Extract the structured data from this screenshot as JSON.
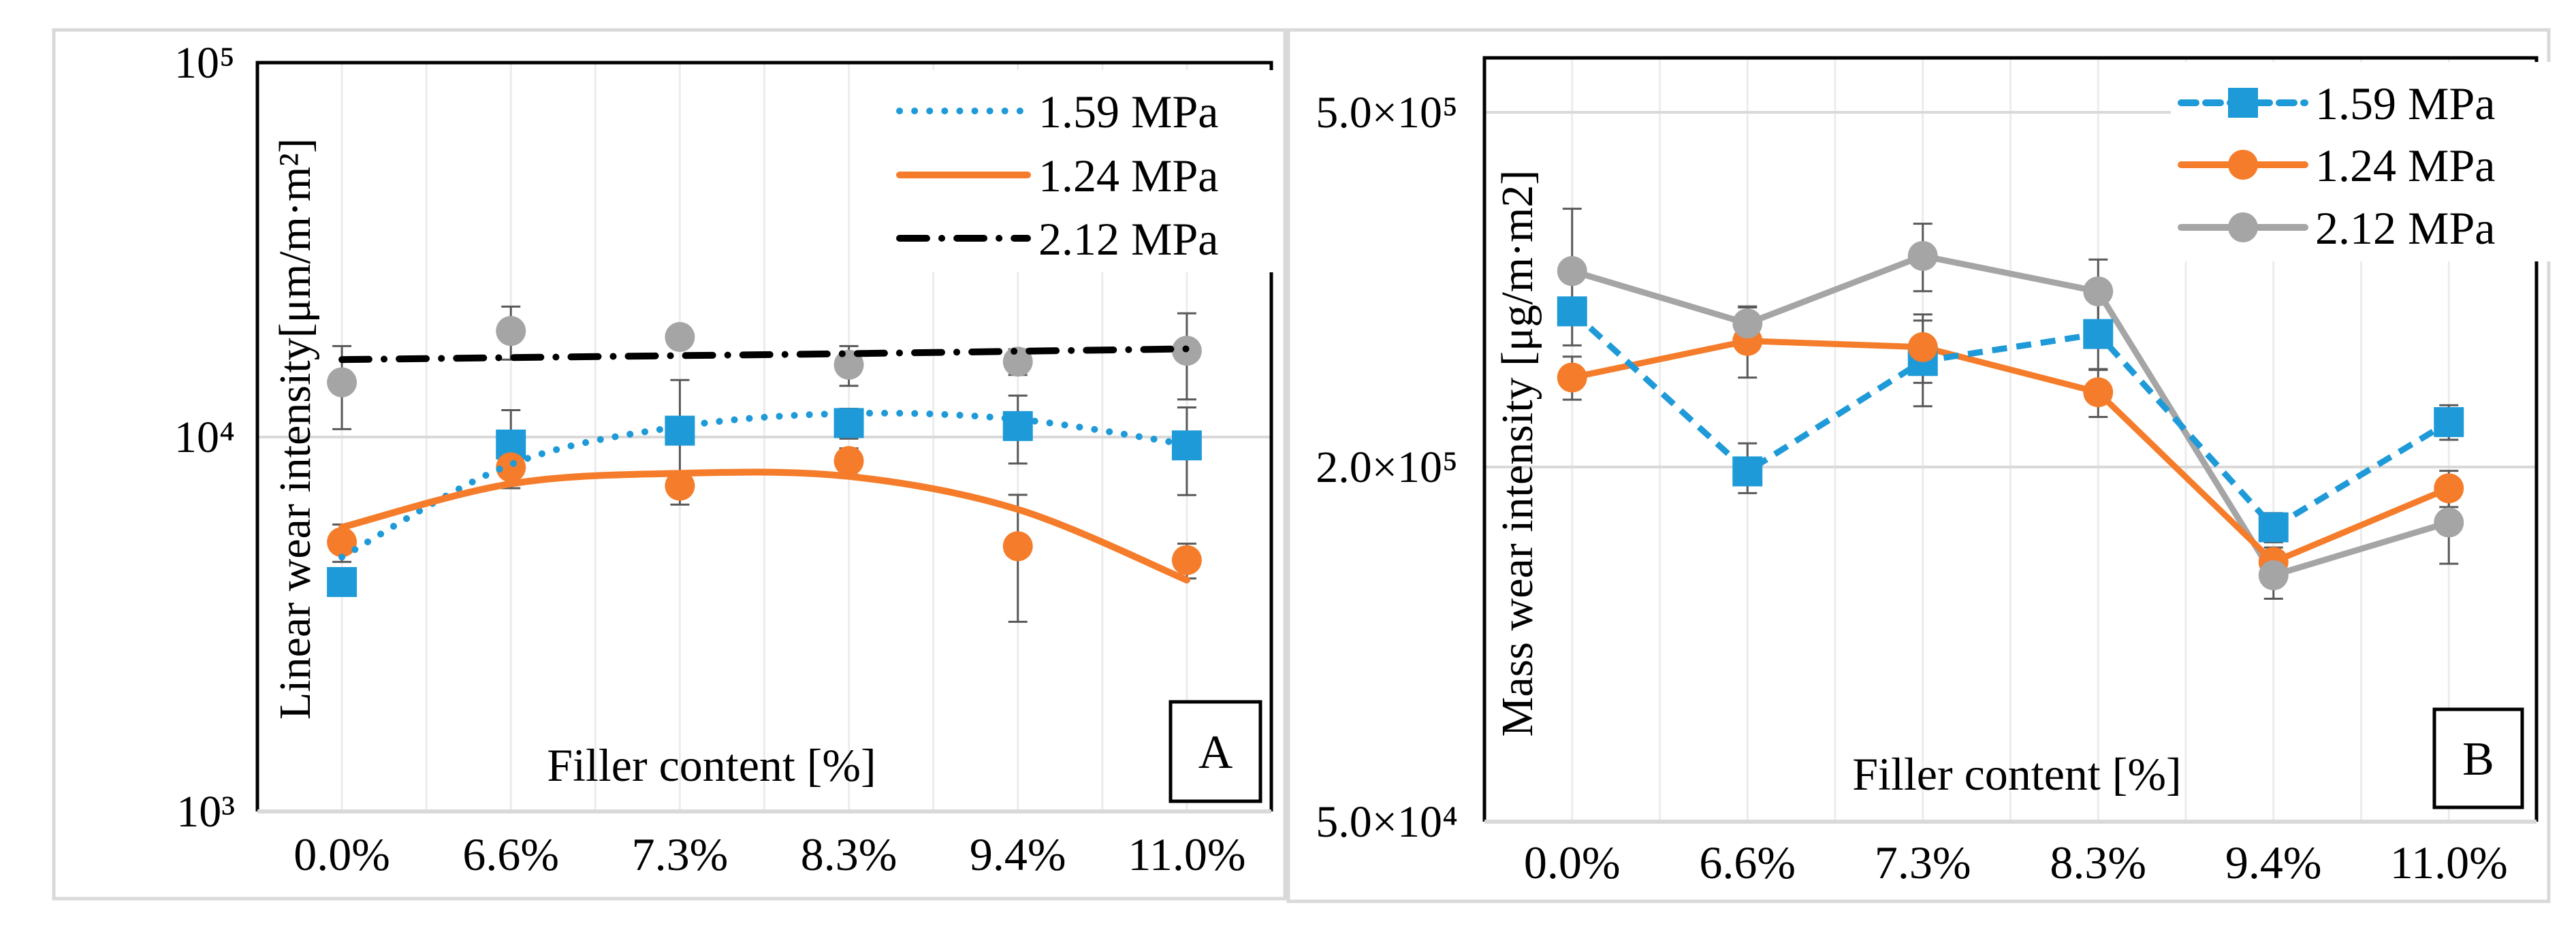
{
  "chart_data": [
    {
      "type": "scatter",
      "panel_label": "A",
      "xlabel": "Filler content [%]",
      "ylabel": "Linear wear intensity[μm/m·m²]",
      "yscale": "log",
      "ylim": [
        1000,
        100000
      ],
      "yticks": [
        {
          "value": 100000,
          "label": "10⁵"
        },
        {
          "value": 10000,
          "label": "10⁴"
        },
        {
          "value": 1000,
          "label": "10³"
        }
      ],
      "grid": true,
      "legend_position": "top-right",
      "categories": [
        "0.0%",
        "6.6%",
        "7.3%",
        "8.3%",
        "9.4%",
        "11.0%"
      ],
      "series": [
        {
          "name": "1.59 MPa",
          "color": "#1f9ad8",
          "marker": "square",
          "values": [
            4100,
            9550,
            10400,
            10900,
            10700,
            9500
          ],
          "errors": [
            300,
            2250,
            3800,
            1000,
            2200,
            2500
          ],
          "trendline": {
            "style": "dotted",
            "color": "#1f9ad8",
            "values": [
              4780,
              8450,
              10670,
              11560,
              11150,
              9550
            ]
          }
        },
        {
          "name": "1.24 MPa",
          "color": "#f57c2a",
          "marker": "circle",
          "values": [
            5240,
            8300,
            7410,
            8630,
            5110,
            4690
          ],
          "errors": [
            600,
            300,
            300,
            700,
            1900,
            500
          ],
          "trendline": {
            "style": "solid",
            "color": "#f57c2a",
            "values": [
              5740,
              7500,
              8000,
              7850,
              6410,
              4150
            ]
          }
        },
        {
          "name": "2.12 MPa",
          "color": "#a5a5a5",
          "marker": "circle",
          "values": [
            14000,
            19200,
            18500,
            15600,
            15900,
            17000
          ],
          "errors": [
            3500,
            3100,
            500,
            1900,
            1250,
            4400
          ],
          "trendline": {
            "style": "dash-dot",
            "color": "#000000",
            "values": [
              16100,
              16300,
              16500,
              16700,
              16950,
              17200
            ]
          }
        }
      ]
    },
    {
      "type": "line",
      "panel_label": "B",
      "xlabel": "Filler content [%]",
      "ylabel": "Mass wear intensity [μg/m·m2]",
      "yscale": "log",
      "ylim": [
        50000,
        500000
      ],
      "yticks": [
        {
          "value": 500000,
          "label": "5.0×10⁵"
        },
        {
          "value": 200000,
          "label": "2.0×10⁵"
        },
        {
          "value": 50000,
          "label": "5.0×10⁴"
        }
      ],
      "grid": true,
      "legend_position": "top-right",
      "categories": [
        "0.0%",
        "6.6%",
        "7.3%",
        "8.3%",
        "9.4%",
        "11.0%"
      ],
      "series": [
        {
          "name": "1.59 MPa",
          "color": "#1f9ad8",
          "marker": "square",
          "line": "dashed",
          "values": [
            299000,
            196600,
            263000,
            282000,
            158000,
            224600
          ],
          "errors": [
            10000,
            16000,
            29000,
            25000,
            9000,
            10000
          ]
        },
        {
          "name": "1.24 MPa",
          "color": "#f57c2a",
          "marker": "circle",
          "line": "solid",
          "values": [
            252000,
            277000,
            272600,
            242600,
            138000,
            184000
          ],
          "errors": [
            14000,
            25000,
            24000,
            15000,
            8000,
            13000
          ]
        },
        {
          "name": "2.12 MPa",
          "color": "#a5a5a5",
          "marker": "circle",
          "line": "solid",
          "values": [
            331800,
            289800,
            345000,
            314800,
            131000,
            161000
          ],
          "errors": [
            58000,
            13000,
            30000,
            27000,
            11500,
            24000
          ]
        }
      ]
    }
  ]
}
